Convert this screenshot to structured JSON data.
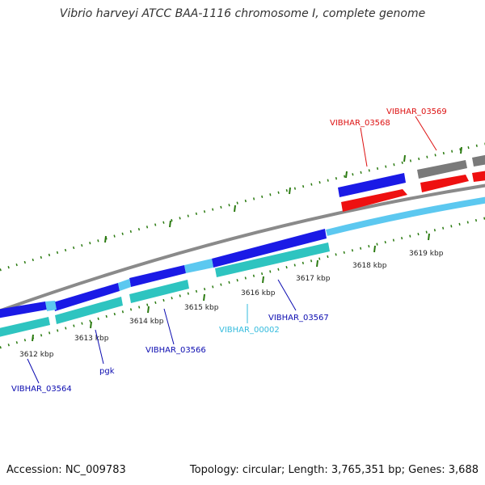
{
  "title": "Vibrio harveyi ATCC BAA-1116 chromosome I, complete genome",
  "footer": {
    "accession": "Accession: NC_009783",
    "summary": "Topology: circular; Length: 3,765,351 bp; Genes: 3,688"
  },
  "colors": {
    "cds": "#1a1ae6",
    "cds_light": "#5cc8f0",
    "gene_teal": "#2ec4c0",
    "gene_red": "#ee1010",
    "gene_gray": "#7a7a7a",
    "tick": "#2a7a10",
    "backbone": "#8a8a8a",
    "label_blue": "#0b0bb0",
    "label_cyan": "#33bbdd",
    "label_red": "#dd1111"
  },
  "scale": {
    "labels": [
      "3612 kbp",
      "3613 kbp",
      "3614 kbp",
      "3615 kbp",
      "3616 kbp",
      "3617 kbp",
      "3618 kbp",
      "3619 kbp"
    ]
  },
  "gene_labels": [
    {
      "text": "VIBHAR_03564",
      "color": "label_blue"
    },
    {
      "text": "pgk",
      "color": "label_blue"
    },
    {
      "text": "VIBHAR_03566",
      "color": "label_blue"
    },
    {
      "text": "VIBHAR_00002",
      "color": "label_cyan"
    },
    {
      "text": "VIBHAR_03567",
      "color": "label_blue"
    },
    {
      "text": "VIBHAR_03568",
      "color": "label_red"
    },
    {
      "text": "VIBHAR_03569",
      "color": "label_red"
    }
  ]
}
